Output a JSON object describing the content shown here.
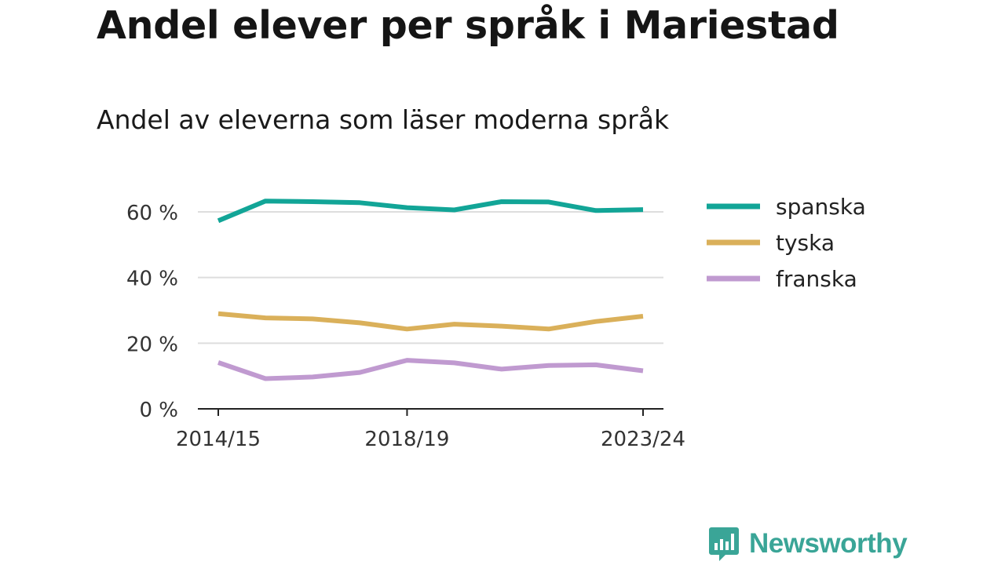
{
  "header": {
    "title": "Andel elever per språk i Mariestad",
    "subtitle": "Andel av eleverna som läser moderna språk"
  },
  "brand": {
    "name": "Newsworthy",
    "icon": "newsworthy-logo-icon",
    "color": "#3aa597"
  },
  "chart_data": {
    "type": "line",
    "x": [
      "2014/15",
      "2015/16",
      "2016/17",
      "2017/18",
      "2018/19",
      "2019/20",
      "2020/21",
      "2021/22",
      "2022/23",
      "2023/24"
    ],
    "x_tick_labels": [
      "2014/15",
      "2018/19",
      "2023/24"
    ],
    "y_ticks": [
      0,
      20,
      40,
      60
    ],
    "y_tick_labels": [
      "0 %",
      "20 %",
      "40 %",
      "60 %"
    ],
    "ylim": [
      0,
      65
    ],
    "grid": true,
    "legend_position": "right",
    "series": [
      {
        "name": "spanska",
        "color": "#12a597",
        "values": [
          57.3,
          63.3,
          63.1,
          62.8,
          61.3,
          60.6,
          63.1,
          63.0,
          60.4,
          60.7
        ]
      },
      {
        "name": "tyska",
        "color": "#dab05a",
        "values": [
          29.0,
          27.7,
          27.4,
          26.2,
          24.3,
          25.8,
          25.2,
          24.3,
          26.6,
          28.2
        ]
      },
      {
        "name": "franska",
        "color": "#c09ad0",
        "values": [
          14.1,
          9.2,
          9.7,
          11.1,
          14.8,
          14.0,
          12.1,
          13.2,
          13.4,
          11.6
        ]
      }
    ]
  }
}
